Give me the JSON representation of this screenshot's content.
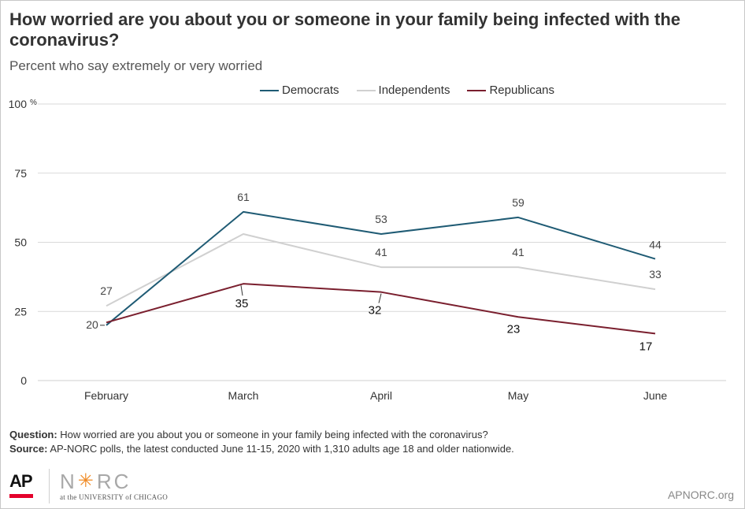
{
  "title": "How worried are you about you or someone in your family being infected with the coronavirus?",
  "subtitle": "Percent who say extremely or very worried",
  "colors": {
    "democrats": "#1f5b74",
    "independents": "#d0d0d0",
    "republicans": "#7a1f2e",
    "grid": "#d9d9d9",
    "text": "#333333"
  },
  "chart_data": {
    "type": "line",
    "categories": [
      "February",
      "March",
      "April",
      "May",
      "June"
    ],
    "series": [
      {
        "name": "Democrats",
        "values": [
          20,
          61,
          53,
          59,
          44
        ],
        "labels": [
          "20",
          "61",
          "53",
          "59",
          "44"
        ]
      },
      {
        "name": "Independents",
        "values": [
          27,
          53,
          41,
          41,
          33
        ],
        "labels": [
          "27",
          "",
          "41",
          "41",
          "33"
        ]
      },
      {
        "name": "Republicans",
        "values": [
          21,
          35,
          32,
          23,
          17
        ],
        "labels": [
          "",
          "35",
          "32",
          "23",
          "17"
        ]
      }
    ],
    "yticks": [
      0,
      25,
      50,
      75,
      100
    ],
    "ytick_labels": [
      "0",
      "25",
      "50",
      "75",
      "100"
    ],
    "yunit": "%",
    "ylim": [
      0,
      100
    ],
    "grid": true,
    "legend_position": "top"
  },
  "notes": {
    "question_label": "Question:",
    "question_text": "How worried are you about you or someone in your family being infected with the coronavirus?",
    "source_label": "Source:",
    "source_text": "AP-NORC polls, the latest conducted June 11-15, 2020 with 1,310 adults age 18 and older nationwide."
  },
  "logos": {
    "ap": "AP",
    "norc_left": "N",
    "norc_right": "RC",
    "norc_sub": "at the UNIVERSITY of CHICAGO"
  },
  "site": "APNORC.org"
}
